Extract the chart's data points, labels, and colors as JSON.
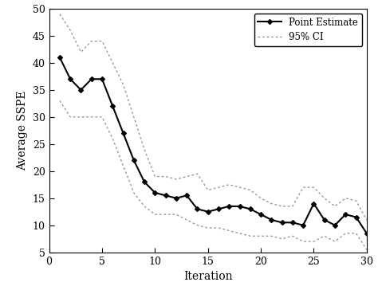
{
  "x": [
    1,
    2,
    3,
    4,
    5,
    6,
    7,
    8,
    9,
    10,
    11,
    12,
    13,
    14,
    15,
    16,
    17,
    18,
    19,
    20,
    21,
    22,
    23,
    24,
    25,
    26,
    27,
    28,
    29,
    30
  ],
  "point_estimate": [
    41,
    37,
    35,
    37,
    37,
    32,
    27,
    22,
    18,
    16,
    15.5,
    15,
    15.5,
    13,
    12.5,
    13,
    13.5,
    13.5,
    13,
    12,
    11,
    10.5,
    10.5,
    10,
    14,
    11,
    10,
    12,
    11.5,
    8.5
  ],
  "ci_upper": [
    49,
    46,
    42,
    44,
    44,
    40,
    36,
    30,
    24,
    19,
    19,
    18.5,
    19,
    19.5,
    16.5,
    17,
    17.5,
    17,
    16.5,
    15,
    14,
    13.5,
    13.5,
    17,
    17,
    15,
    13.5,
    15,
    14.5,
    11
  ],
  "ci_lower": [
    33,
    30,
    30,
    30,
    30,
    26,
    21,
    16,
    13.5,
    12,
    12,
    12,
    11,
    10,
    9.5,
    9.5,
    9,
    8.5,
    8,
    8,
    8,
    7.5,
    8,
    7,
    7,
    8,
    7,
    8.5,
    8.5,
    5.5
  ],
  "xlim": [
    0,
    30
  ],
  "ylim": [
    5,
    50
  ],
  "xticks": [
    0,
    5,
    10,
    15,
    20,
    25,
    30
  ],
  "yticks": [
    5,
    10,
    15,
    20,
    25,
    30,
    35,
    40,
    45,
    50
  ],
  "xlabel": "Iteration",
  "ylabel": "Average SSPE",
  "point_color": "#000000",
  "ci_color": "#999999",
  "legend_point": "Point Estimate",
  "legend_ci": "95% CI",
  "bg_color": "#ffffff",
  "fig_width": 4.74,
  "fig_height": 3.64,
  "dpi": 100
}
